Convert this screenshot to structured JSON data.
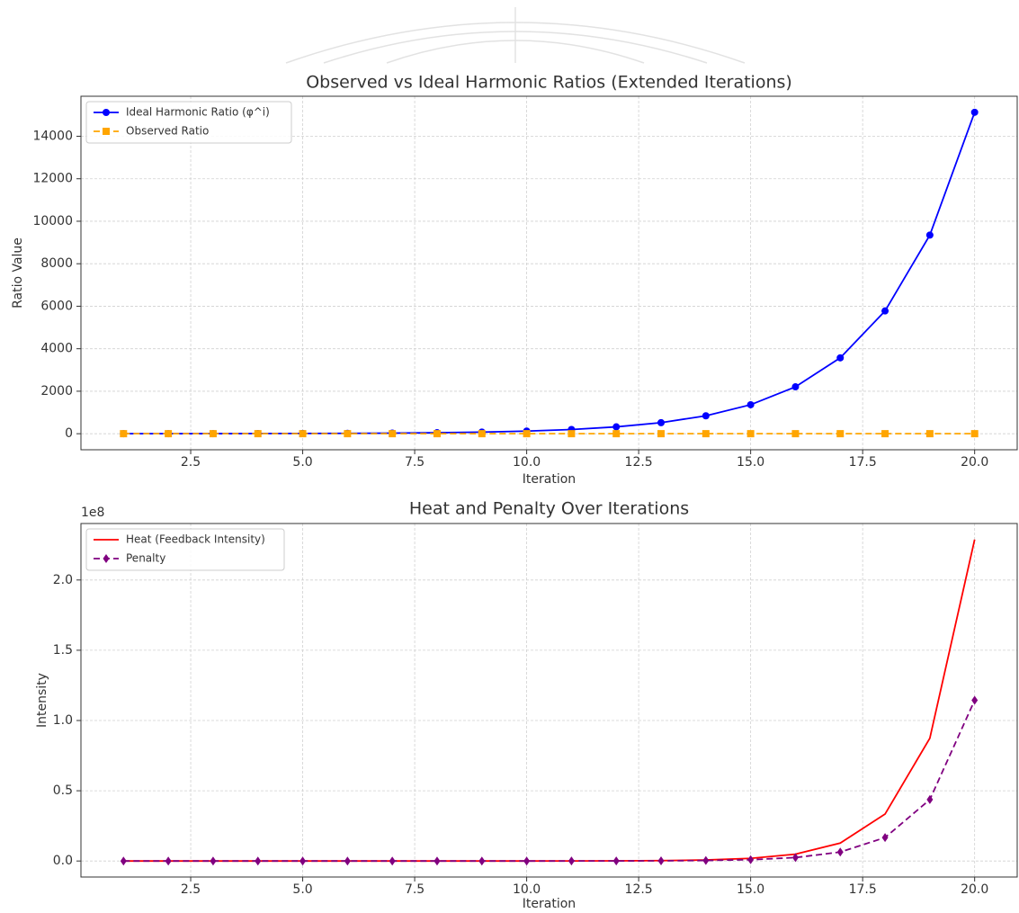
{
  "chart_data": [
    {
      "type": "line",
      "title": "Observed vs Ideal Harmonic Ratios (Extended Iterations)",
      "x_label": "Iteration",
      "y_label": "Ratio Value",
      "x": [
        1,
        2,
        3,
        4,
        5,
        6,
        7,
        8,
        9,
        10,
        11,
        12,
        13,
        14,
        15,
        16,
        17,
        18,
        19,
        20
      ],
      "series": [
        {
          "name": "Ideal Harmonic Ratio (φ^i)",
          "color": "#0000ff",
          "marker": "circle",
          "linestyle": "solid",
          "values": [
            1.618,
            2.618,
            4.236,
            6.854,
            11.09,
            17.94,
            29.03,
            46.98,
            76.01,
            122.99,
            199.0,
            321.99,
            521.0,
            842.97,
            1364.0,
            2206.99,
            3571.0,
            5777.99,
            9349.0,
            15126.99
          ]
        },
        {
          "name": "Observed Ratio",
          "color": "#ffa500",
          "marker": "square",
          "linestyle": "dashed",
          "values": [
            1.6,
            1.6,
            1.6,
            1.6,
            1.6,
            1.6,
            1.6,
            1.6,
            1.6,
            1.6,
            1.6,
            1.6,
            1.6,
            1.6,
            1.6,
            1.6,
            1.6,
            1.6,
            1.6,
            1.6
          ]
        }
      ],
      "xlim": [
        0.05,
        20.95
      ],
      "xticks": [
        2.5,
        {
          "value": 5,
          "label": "5.0"
        },
        7.5,
        {
          "value": 10,
          "label": "10.0"
        },
        12.5,
        {
          "value": 15,
          "label": "15.0"
        },
        17.5,
        {
          "value": 20,
          "label": "20.0"
        }
      ],
      "ylim": [
        -755,
        15883
      ],
      "yticks": [
        0,
        2000,
        4000,
        6000,
        8000,
        10000,
        12000,
        14000
      ],
      "grid": true,
      "legend": "upper-left"
    },
    {
      "type": "line",
      "title": "Heat and Penalty Over Iterations",
      "x_label": "Iteration",
      "y_label": "Intensity",
      "y_offset_label": "1e8",
      "x": [
        1,
        2,
        3,
        4,
        5,
        6,
        7,
        8,
        9,
        10,
        11,
        12,
        13,
        14,
        15,
        16,
        17,
        18,
        19,
        20
      ],
      "series": [
        {
          "name": "Heat (Feedback Intensity)",
          "color": "#ff0000",
          "marker": "none",
          "linestyle": "solid",
          "values": [
            0,
            0,
            0,
            0,
            0,
            0,
            0,
            0,
            0,
            0,
            0.0004,
            0.001,
            0.0027,
            0.0071,
            0.0186,
            0.0487,
            0.1275,
            0.3339,
            0.874,
            2.288
          ]
        },
        {
          "name": "Penalty",
          "color": "#800080",
          "marker": "diamond",
          "linestyle": "dashed",
          "values": [
            0,
            0,
            0,
            0,
            0,
            0,
            0,
            0,
            0,
            0,
            0.0002,
            0.0005,
            0.0014,
            0.0036,
            0.0093,
            0.0244,
            0.0638,
            0.1669,
            0.437,
            1.144
          ]
        }
      ],
      "xlim": [
        0.05,
        20.95
      ],
      "xticks": [
        2.5,
        {
          "value": 5,
          "label": "5.0"
        },
        7.5,
        {
          "value": 10,
          "label": "10.0"
        },
        12.5,
        {
          "value": 15,
          "label": "15.0"
        },
        17.5,
        {
          "value": 20,
          "label": "20.0"
        }
      ],
      "ylim": [
        -0.114,
        2.402
      ],
      "yticks": [
        {
          "value": 0,
          "label": "0.0"
        },
        0.5,
        {
          "value": 1,
          "label": "1.0"
        },
        1.5,
        {
          "value": 2,
          "label": "2.0"
        }
      ],
      "grid": true,
      "legend": "upper-left"
    }
  ]
}
